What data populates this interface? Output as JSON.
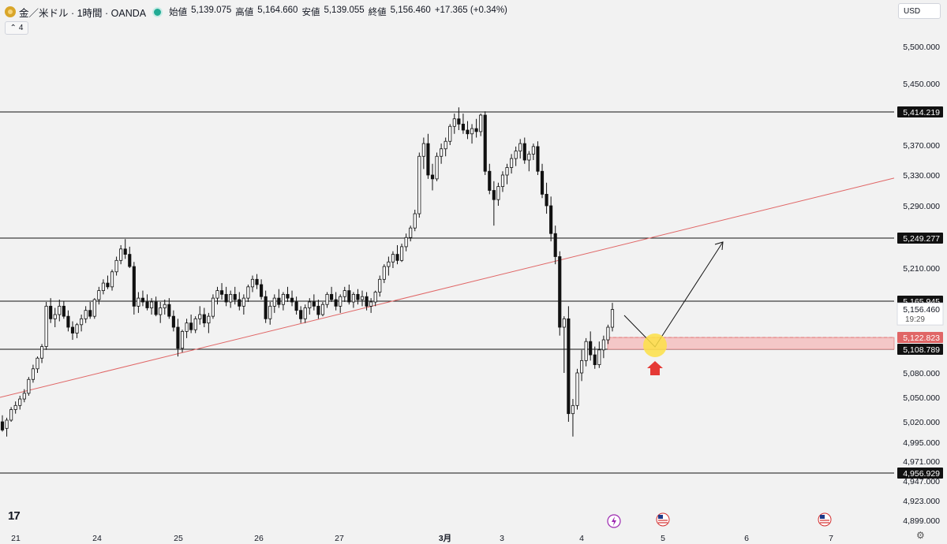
{
  "header": {
    "symbol": "金／米ドル · 1時間 · OANDA",
    "open_label": "始値",
    "open": "5,139.075",
    "high_label": "高値",
    "high": "5,164.660",
    "low_label": "安値",
    "low": "5,139.055",
    "close_label": "終値",
    "close": "5,156.460",
    "change": "+17.365 (+0.34%)"
  },
  "indicator_count": "4",
  "currency": "USD",
  "logo": "17",
  "colors": {
    "bg": "#f2f2f2",
    "candle": "#111111",
    "trendline": "#e06666",
    "zone": "#f4c7c7",
    "highlight": "#fde047",
    "arrow": "#e53935"
  },
  "chart_data": {
    "type": "candlestick",
    "title": "金／米ドル · 1時間 · OANDA",
    "ylim": [
      4880,
      5530
    ],
    "y_ticks": [
      5500.0,
      5450.0,
      5370.0,
      5330.0,
      5290.0,
      5210.0,
      5080.0,
      5050.0,
      5020.0,
      4995.0,
      4971.0,
      4947.0,
      4923.0,
      4899.0
    ],
    "y_tick_labels": [
      "5,500.000",
      "5,450.000",
      "5,370.000",
      "5,330.000",
      "5,290.000",
      "5,210.000",
      "5,080.000",
      "5,050.000",
      "5,020.000",
      "4,995.000",
      "4,971.000",
      "4,947.000",
      "4,923.000",
      "4,899.000"
    ],
    "x_tick_labels": [
      "21",
      "24",
      "25",
      "26",
      "27",
      "3月",
      "3",
      "4",
      "5",
      "6",
      "7"
    ],
    "horizontal_levels": [
      {
        "value": 5414.219,
        "label": "5,414.219"
      },
      {
        "value": 5249.277,
        "label": "5,249.277"
      },
      {
        "value": 5165.945,
        "label": "5,165.945"
      },
      {
        "value": 5108.789,
        "label": "5,108.789"
      },
      {
        "value": 4956.929,
        "label": "4,956.929"
      }
    ],
    "last_price": {
      "value": 5156.46,
      "label": "5,156.460",
      "countdown": "19:29"
    },
    "zone": {
      "top": 5122.823,
      "bottom": 5108.789,
      "label": "5,122.823"
    },
    "trendline": {
      "start": 5050,
      "end": 5326
    },
    "candles": [
      [
        5020,
        5028,
        5008,
        5010
      ],
      [
        5012,
        5025,
        5002,
        5022
      ],
      [
        5022,
        5038,
        5020,
        5035
      ],
      [
        5035,
        5045,
        5030,
        5040
      ],
      [
        5040,
        5052,
        5035,
        5048
      ],
      [
        5048,
        5060,
        5044,
        5055
      ],
      [
        5055,
        5075,
        5052,
        5072
      ],
      [
        5072,
        5090,
        5068,
        5085
      ],
      [
        5085,
        5100,
        5080,
        5098
      ],
      [
        5098,
        5115,
        5092,
        5112
      ],
      [
        5112,
        5165,
        5108,
        5160
      ],
      [
        5160,
        5170,
        5140,
        5145
      ],
      [
        5145,
        5158,
        5135,
        5150
      ],
      [
        5150,
        5168,
        5142,
        5160
      ],
      [
        5160,
        5166,
        5145,
        5148
      ],
      [
        5148,
        5155,
        5130,
        5135
      ],
      [
        5135,
        5142,
        5120,
        5128
      ],
      [
        5128,
        5140,
        5122,
        5138
      ],
      [
        5138,
        5150,
        5130,
        5145
      ],
      [
        5145,
        5160,
        5140,
        5155
      ],
      [
        5155,
        5165,
        5145,
        5148
      ],
      [
        5148,
        5170,
        5145,
        5168
      ],
      [
        5168,
        5185,
        5162,
        5180
      ],
      [
        5180,
        5195,
        5175,
        5190
      ],
      [
        5190,
        5200,
        5182,
        5185
      ],
      [
        5185,
        5208,
        5180,
        5205
      ],
      [
        5205,
        5225,
        5200,
        5220
      ],
      [
        5220,
        5240,
        5215,
        5235
      ],
      [
        5235,
        5248,
        5222,
        5228
      ],
      [
        5228,
        5238,
        5210,
        5212
      ],
      [
        5212,
        5218,
        5150,
        5160
      ],
      [
        5160,
        5178,
        5152,
        5170
      ],
      [
        5170,
        5180,
        5160,
        5165
      ],
      [
        5165,
        5175,
        5155,
        5158
      ],
      [
        5158,
        5170,
        5150,
        5165
      ],
      [
        5165,
        5172,
        5148,
        5150
      ],
      [
        5150,
        5165,
        5140,
        5158
      ],
      [
        5158,
        5168,
        5150,
        5162
      ],
      [
        5162,
        5170,
        5145,
        5148
      ],
      [
        5148,
        5155,
        5130,
        5135
      ],
      [
        5135,
        5145,
        5100,
        5110
      ],
      [
        5110,
        5132,
        5105,
        5130
      ],
      [
        5130,
        5145,
        5122,
        5140
      ],
      [
        5140,
        5150,
        5128,
        5132
      ],
      [
        5132,
        5148,
        5128,
        5145
      ],
      [
        5145,
        5160,
        5138,
        5150
      ],
      [
        5150,
        5158,
        5135,
        5140
      ],
      [
        5140,
        5152,
        5128,
        5148
      ],
      [
        5148,
        5175,
        5145,
        5170
      ],
      [
        5170,
        5185,
        5162,
        5180
      ],
      [
        5180,
        5190,
        5168,
        5175
      ],
      [
        5175,
        5185,
        5160,
        5165
      ],
      [
        5165,
        5180,
        5158,
        5175
      ],
      [
        5175,
        5185,
        5162,
        5168
      ],
      [
        5168,
        5178,
        5155,
        5160
      ],
      [
        5160,
        5175,
        5150,
        5170
      ],
      [
        5170,
        5188,
        5165,
        5185
      ],
      [
        5185,
        5200,
        5178,
        5195
      ],
      [
        5195,
        5202,
        5182,
        5188
      ],
      [
        5188,
        5195,
        5168,
        5172
      ],
      [
        5172,
        5180,
        5140,
        5145
      ],
      [
        5145,
        5165,
        5138,
        5160
      ],
      [
        5160,
        5175,
        5152,
        5170
      ],
      [
        5170,
        5182,
        5158,
        5162
      ],
      [
        5162,
        5178,
        5155,
        5175
      ],
      [
        5175,
        5185,
        5165,
        5170
      ],
      [
        5170,
        5180,
        5160,
        5165
      ],
      [
        5165,
        5172,
        5150,
        5155
      ],
      [
        5155,
        5160,
        5140,
        5145
      ],
      [
        5145,
        5162,
        5140,
        5158
      ],
      [
        5158,
        5170,
        5150,
        5165
      ],
      [
        5165,
        5175,
        5155,
        5160
      ],
      [
        5160,
        5168,
        5145,
        5150
      ],
      [
        5150,
        5165,
        5148,
        5162
      ],
      [
        5162,
        5178,
        5158,
        5175
      ],
      [
        5175,
        5185,
        5165,
        5168
      ],
      [
        5168,
        5178,
        5155,
        5160
      ],
      [
        5160,
        5175,
        5152,
        5172
      ],
      [
        5172,
        5185,
        5165,
        5180
      ],
      [
        5180,
        5188,
        5162,
        5165
      ],
      [
        5165,
        5178,
        5158,
        5175
      ],
      [
        5175,
        5182,
        5162,
        5168
      ],
      [
        5168,
        5180,
        5160,
        5172
      ],
      [
        5172,
        5178,
        5155,
        5160
      ],
      [
        5160,
        5170,
        5152,
        5165
      ],
      [
        5165,
        5180,
        5160,
        5178
      ],
      [
        5178,
        5200,
        5172,
        5195
      ],
      [
        5195,
        5215,
        5190,
        5212
      ],
      [
        5212,
        5225,
        5200,
        5218
      ],
      [
        5218,
        5232,
        5210,
        5228
      ],
      [
        5228,
        5240,
        5215,
        5220
      ],
      [
        5220,
        5242,
        5218,
        5238
      ],
      [
        5238,
        5255,
        5232,
        5250
      ],
      [
        5250,
        5265,
        5245,
        5262
      ],
      [
        5262,
        5285,
        5258,
        5280
      ],
      [
        5280,
        5360,
        5275,
        5355
      ],
      [
        5355,
        5380,
        5338,
        5372
      ],
      [
        5372,
        5385,
        5325,
        5330
      ],
      [
        5330,
        5345,
        5310,
        5325
      ],
      [
        5325,
        5360,
        5322,
        5355
      ],
      [
        5355,
        5372,
        5345,
        5365
      ],
      [
        5365,
        5380,
        5355,
        5375
      ],
      [
        5375,
        5398,
        5370,
        5395
      ],
      [
        5395,
        5412,
        5385,
        5405
      ],
      [
        5405,
        5420,
        5390,
        5398
      ],
      [
        5398,
        5412,
        5385,
        5390
      ],
      [
        5390,
        5402,
        5378,
        5385
      ],
      [
        5385,
        5398,
        5372,
        5392
      ],
      [
        5392,
        5405,
        5380,
        5388
      ],
      [
        5388,
        5412,
        5382,
        5410
      ],
      [
        5410,
        5415,
        5330,
        5335
      ],
      [
        5335,
        5345,
        5305,
        5310
      ],
      [
        5310,
        5322,
        5265,
        5298
      ],
      [
        5298,
        5320,
        5290,
        5315
      ],
      [
        5315,
        5335,
        5308,
        5330
      ],
      [
        5330,
        5345,
        5318,
        5340
      ],
      [
        5340,
        5358,
        5332,
        5352
      ],
      [
        5352,
        5368,
        5342,
        5362
      ],
      [
        5362,
        5378,
        5352,
        5372
      ],
      [
        5372,
        5380,
        5345,
        5350
      ],
      [
        5350,
        5362,
        5335,
        5358
      ],
      [
        5358,
        5372,
        5350,
        5368
      ],
      [
        5368,
        5375,
        5330,
        5335
      ],
      [
        5335,
        5345,
        5300,
        5305
      ],
      [
        5305,
        5320,
        5280,
        5290
      ],
      [
        5290,
        5302,
        5245,
        5255
      ],
      [
        5255,
        5265,
        5215,
        5225
      ],
      [
        5225,
        5232,
        5125,
        5135
      ],
      [
        5135,
        5148,
        5080,
        5145
      ],
      [
        5145,
        5160,
        5020,
        5030
      ],
      [
        5030,
        5048,
        5002,
        5040
      ],
      [
        5040,
        5085,
        5035,
        5080
      ],
      [
        5080,
        5108,
        5070,
        5095
      ],
      [
        5095,
        5122,
        5088,
        5118
      ],
      [
        5118,
        5130,
        5095,
        5102
      ],
      [
        5102,
        5112,
        5085,
        5090
      ],
      [
        5090,
        5118,
        5086,
        5108
      ],
      [
        5108,
        5125,
        5098,
        5120
      ],
      [
        5120,
        5138,
        5115,
        5135
      ],
      [
        5135,
        5164,
        5130,
        5156
      ]
    ]
  }
}
